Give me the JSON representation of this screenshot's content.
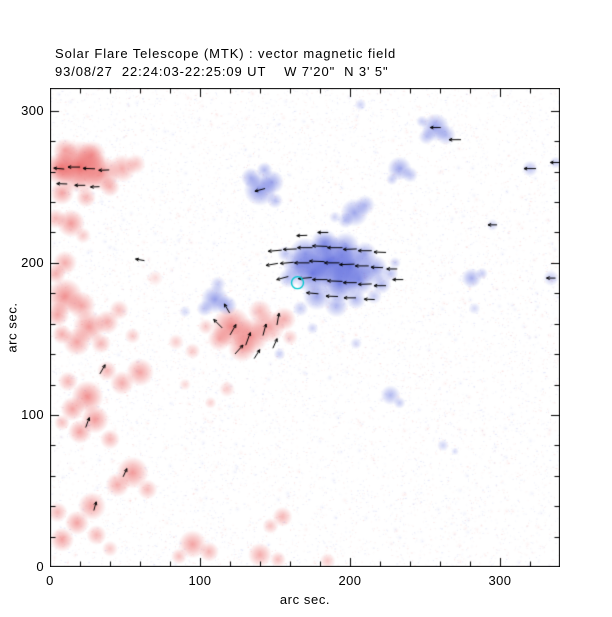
{
  "title": "Solar Flare Telescope (MTK) : vector magnetic field",
  "subtitle": "93/08/27  22:24:03-22:25:09 UT    W 7'20\"  N 3' 5\"",
  "chart_data": {
    "type": "heatmap",
    "title": "Solar Flare Telescope (MTK) : vector magnetic field",
    "subtitle": "93/08/27  22:24:03-22:25:09 UT    W 7'20\"  N 3' 5\"",
    "xlabel": "arc sec.",
    "ylabel": "arc sec.",
    "xlim": [
      0,
      340
    ],
    "ylim": [
      0,
      315
    ],
    "xticks": [
      0,
      100,
      200,
      300
    ],
    "yticks": [
      0,
      100,
      200,
      300
    ],
    "minor_tick_step": 20,
    "grid": false,
    "legend": "none",
    "colors": {
      "red_polarity": "#e84848",
      "blue_polarity": "#4050d8",
      "vector": "#000000",
      "marker": "#00c6ce",
      "frame": "#000000"
    },
    "noise": {
      "seed": 1234,
      "count": 12000,
      "min_alpha": 0.03,
      "max_alpha": 0.13
    },
    "blobs_format": [
      "x_arcsec",
      "y_arcsec",
      "radius_arcsec",
      "polarity",
      "intensity"
    ],
    "blobs": [
      [
        20,
        263,
        13,
        "r",
        0.8
      ],
      [
        7,
        262,
        8,
        "r",
        0.7
      ],
      [
        34,
        259,
        9,
        "r",
        0.55
      ],
      [
        48,
        262,
        7,
        "r",
        0.45
      ],
      [
        28,
        271,
        7,
        "r",
        0.5
      ],
      [
        10,
        274,
        6,
        "r",
        0.45
      ],
      [
        57,
        265,
        5,
        "r",
        0.35
      ],
      [
        40,
        250,
        5,
        "r",
        0.4
      ],
      [
        8,
        246,
        6,
        "r",
        0.5
      ],
      [
        24,
        243,
        5,
        "r",
        0.4
      ],
      [
        14,
        226,
        7,
        "r",
        0.55
      ],
      [
        4,
        229,
        5,
        "r",
        0.4
      ],
      [
        22,
        218,
        4,
        "r",
        0.3
      ],
      [
        10,
        200,
        6,
        "r",
        0.45
      ],
      [
        4,
        193,
        5,
        "r",
        0.45
      ],
      [
        10,
        178,
        9,
        "r",
        0.6
      ],
      [
        21,
        172,
        7,
        "r",
        0.5
      ],
      [
        5,
        166,
        6,
        "r",
        0.5
      ],
      [
        26,
        158,
        8,
        "r",
        0.55
      ],
      [
        38,
        161,
        6,
        "r",
        0.45
      ],
      [
        46,
        169,
        5,
        "r",
        0.35
      ],
      [
        18,
        148,
        7,
        "r",
        0.5
      ],
      [
        34,
        147,
        5,
        "r",
        0.4
      ],
      [
        8,
        153,
        5,
        "r",
        0.45
      ],
      [
        55,
        152,
        4,
        "r",
        0.3
      ],
      [
        121,
        158,
        10,
        "r",
        0.65
      ],
      [
        134,
        152,
        9,
        "r",
        0.6
      ],
      [
        146,
        158,
        8,
        "r",
        0.5
      ],
      [
        156,
        163,
        6,
        "r",
        0.45
      ],
      [
        128,
        144,
        7,
        "r",
        0.5
      ],
      [
        113,
        150,
        6,
        "r",
        0.45
      ],
      [
        140,
        168,
        6,
        "r",
        0.4
      ],
      [
        160,
        151,
        4,
        "r",
        0.3
      ],
      [
        104,
        158,
        4,
        "r",
        0.3
      ],
      [
        95,
        142,
        4,
        "r",
        0.3
      ],
      [
        84,
        148,
        4,
        "r",
        0.28
      ],
      [
        70,
        190,
        4,
        "r",
        0.2
      ],
      [
        90,
        120,
        3,
        "r",
        0.22
      ],
      [
        118,
        117,
        4,
        "r",
        0.28
      ],
      [
        107,
        108,
        3,
        "r",
        0.25
      ],
      [
        60,
        128,
        7,
        "r",
        0.5
      ],
      [
        48,
        121,
        6,
        "r",
        0.45
      ],
      [
        38,
        129,
        5,
        "r",
        0.4
      ],
      [
        25,
        112,
        8,
        "r",
        0.6
      ],
      [
        15,
        104,
        6,
        "r",
        0.5
      ],
      [
        30,
        97,
        7,
        "r",
        0.55
      ],
      [
        20,
        89,
        6,
        "r",
        0.5
      ],
      [
        40,
        84,
        5,
        "r",
        0.4
      ],
      [
        12,
        122,
        5,
        "r",
        0.4
      ],
      [
        8,
        95,
        4,
        "r",
        0.35
      ],
      [
        55,
        62,
        8,
        "r",
        0.55
      ],
      [
        45,
        54,
        6,
        "r",
        0.45
      ],
      [
        65,
        51,
        5,
        "r",
        0.38
      ],
      [
        28,
        40,
        7,
        "r",
        0.5
      ],
      [
        18,
        29,
        6,
        "r",
        0.5
      ],
      [
        31,
        21,
        5,
        "r",
        0.4
      ],
      [
        8,
        18,
        6,
        "r",
        0.5
      ],
      [
        5,
        36,
        5,
        "r",
        0.4
      ],
      [
        40,
        12,
        4,
        "r",
        0.3
      ],
      [
        95,
        15,
        7,
        "r",
        0.5
      ],
      [
        106,
        10,
        5,
        "r",
        0.4
      ],
      [
        86,
        7,
        4,
        "r",
        0.35
      ],
      [
        140,
        8,
        6,
        "r",
        0.45
      ],
      [
        152,
        5,
        4,
        "r",
        0.35
      ],
      [
        155,
        33,
        5,
        "r",
        0.4
      ],
      [
        147,
        27,
        4,
        "r",
        0.33
      ],
      [
        185,
        4,
        4,
        "r",
        0.3
      ],
      [
        186,
        201,
        13,
        "b",
        0.8
      ],
      [
        200,
        198,
        11,
        "b",
        0.72
      ],
      [
        175,
        193,
        10,
        "b",
        0.7
      ],
      [
        193,
        186,
        9,
        "b",
        0.68
      ],
      [
        206,
        189,
        8,
        "b",
        0.6
      ],
      [
        216,
        196,
        7,
        "b",
        0.55
      ],
      [
        170,
        206,
        8,
        "b",
        0.6
      ],
      [
        183,
        213,
        7,
        "b",
        0.55
      ],
      [
        197,
        211,
        7,
        "b",
        0.5
      ],
      [
        210,
        206,
        6,
        "b",
        0.45
      ],
      [
        178,
        178,
        7,
        "b",
        0.5
      ],
      [
        191,
        172,
        6,
        "b",
        0.42
      ],
      [
        204,
        176,
        5,
        "b",
        0.4
      ],
      [
        221,
        186,
        5,
        "b",
        0.4
      ],
      [
        165,
        198,
        7,
        "b",
        0.55
      ],
      [
        159,
        190,
        5,
        "b",
        0.4
      ],
      [
        227,
        193,
        4,
        "b",
        0.35
      ],
      [
        216,
        178,
        4,
        "b",
        0.3
      ],
      [
        167,
        170,
        4,
        "b",
        0.3
      ],
      [
        157,
        206,
        4,
        "b",
        0.35
      ],
      [
        230,
        200,
        3,
        "b",
        0.28
      ],
      [
        140,
        248,
        8,
        "b",
        0.6
      ],
      [
        148,
        253,
        6,
        "b",
        0.5
      ],
      [
        134,
        256,
        5,
        "b",
        0.45
      ],
      [
        143,
        261,
        4,
        "b",
        0.4
      ],
      [
        150,
        241,
        4,
        "b",
        0.35
      ],
      [
        110,
        176,
        7,
        "b",
        0.55
      ],
      [
        118,
        172,
        5,
        "b",
        0.45
      ],
      [
        103,
        170,
        4,
        "b",
        0.35
      ],
      [
        112,
        186,
        4,
        "b",
        0.3
      ],
      [
        90,
        168,
        3,
        "b",
        0.22
      ],
      [
        203,
        233,
        7,
        "b",
        0.5
      ],
      [
        210,
        238,
        5,
        "b",
        0.4
      ],
      [
        197,
        228,
        4,
        "b",
        0.35
      ],
      [
        233,
        262,
        6,
        "b",
        0.5
      ],
      [
        240,
        258,
        4,
        "b",
        0.35
      ],
      [
        228,
        255,
        3,
        "b",
        0.3
      ],
      [
        257,
        289,
        7,
        "b",
        0.55
      ],
      [
        264,
        284,
        5,
        "b",
        0.4
      ],
      [
        251,
        283,
        4,
        "b",
        0.35
      ],
      [
        248,
        293,
        3,
        "b",
        0.3
      ],
      [
        281,
        190,
        5,
        "b",
        0.45
      ],
      [
        288,
        193,
        3,
        "b",
        0.3
      ],
      [
        283,
        170,
        3,
        "b",
        0.22
      ],
      [
        295,
        225,
        3,
        "b",
        0.25
      ],
      [
        320,
        262,
        4,
        "b",
        0.35
      ],
      [
        334,
        190,
        4,
        "b",
        0.3
      ],
      [
        337,
        266,
        3,
        "b",
        0.3
      ],
      [
        227,
        113,
        5,
        "b",
        0.4
      ],
      [
        233,
        108,
        3,
        "b",
        0.3
      ],
      [
        262,
        80,
        3,
        "b",
        0.25
      ],
      [
        270,
        76,
        2,
        "b",
        0.2
      ],
      [
        204,
        147,
        3,
        "b",
        0.25
      ],
      [
        153,
        140,
        3,
        "b",
        0.28
      ],
      [
        175,
        157,
        3,
        "b",
        0.25
      ],
      [
        207,
        304,
        3,
        "b",
        0.25
      ],
      [
        190,
        230,
        3,
        "b",
        0.25
      ]
    ],
    "vectors_format": [
      "x_arcsec",
      "y_arcsec",
      "angle_deg_ccw_from_east",
      "length_arcsec"
    ],
    "vectors": [
      [
        150,
        208,
        185,
        9
      ],
      [
        160,
        209,
        182,
        9
      ],
      [
        170,
        210,
        180,
        10
      ],
      [
        180,
        211,
        178,
        10
      ],
      [
        190,
        210,
        180,
        10
      ],
      [
        200,
        209,
        182,
        9
      ],
      [
        210,
        208,
        180,
        9
      ],
      [
        220,
        207,
        178,
        8
      ],
      [
        148,
        199,
        190,
        8
      ],
      [
        158,
        200,
        185,
        9
      ],
      [
        168,
        200,
        180,
        10
      ],
      [
        178,
        201,
        178,
        10
      ],
      [
        188,
        200,
        180,
        10
      ],
      [
        198,
        199,
        182,
        10
      ],
      [
        208,
        198,
        180,
        9
      ],
      [
        218,
        197,
        178,
        8
      ],
      [
        228,
        196,
        180,
        7
      ],
      [
        155,
        190,
        195,
        8
      ],
      [
        170,
        190,
        185,
        9
      ],
      [
        180,
        189,
        180,
        10
      ],
      [
        190,
        188,
        178,
        10
      ],
      [
        200,
        187,
        180,
        9
      ],
      [
        210,
        186,
        182,
        9
      ],
      [
        220,
        185,
        180,
        8
      ],
      [
        232,
        189,
        180,
        7
      ],
      [
        175,
        180,
        175,
        8
      ],
      [
        188,
        178,
        178,
        8
      ],
      [
        200,
        177,
        180,
        8
      ],
      [
        213,
        176,
        178,
        7
      ],
      [
        168,
        218,
        182,
        7
      ],
      [
        182,
        220,
        180,
        7
      ],
      [
        112,
        160,
        135,
        8
      ],
      [
        122,
        156,
        60,
        8
      ],
      [
        132,
        150,
        70,
        9
      ],
      [
        143,
        156,
        75,
        8
      ],
      [
        152,
        163,
        80,
        8
      ],
      [
        126,
        143,
        48,
        8
      ],
      [
        138,
        140,
        58,
        7
      ],
      [
        150,
        147,
        66,
        7
      ],
      [
        118,
        170,
        120,
        7
      ],
      [
        6,
        262,
        175,
        7
      ],
      [
        16,
        263,
        180,
        8
      ],
      [
        26,
        262,
        178,
        8
      ],
      [
        36,
        261,
        182,
        7
      ],
      [
        8,
        252,
        178,
        7
      ],
      [
        20,
        251,
        180,
        7
      ],
      [
        30,
        250,
        182,
        6
      ],
      [
        270,
        281,
        180,
        8
      ],
      [
        320,
        262,
        180,
        8
      ],
      [
        295,
        225,
        180,
        6
      ],
      [
        334,
        190,
        180,
        6
      ],
      [
        337,
        266,
        180,
        7
      ],
      [
        257,
        289,
        180,
        7
      ],
      [
        140,
        248,
        195,
        7
      ],
      [
        60,
        202,
        170,
        6
      ],
      [
        35,
        130,
        60,
        7
      ],
      [
        25,
        95,
        70,
        7
      ],
      [
        50,
        62,
        65,
        6
      ],
      [
        30,
        40,
        75,
        6
      ]
    ],
    "marker": {
      "x": 165,
      "y": 187,
      "r": 4
    }
  }
}
